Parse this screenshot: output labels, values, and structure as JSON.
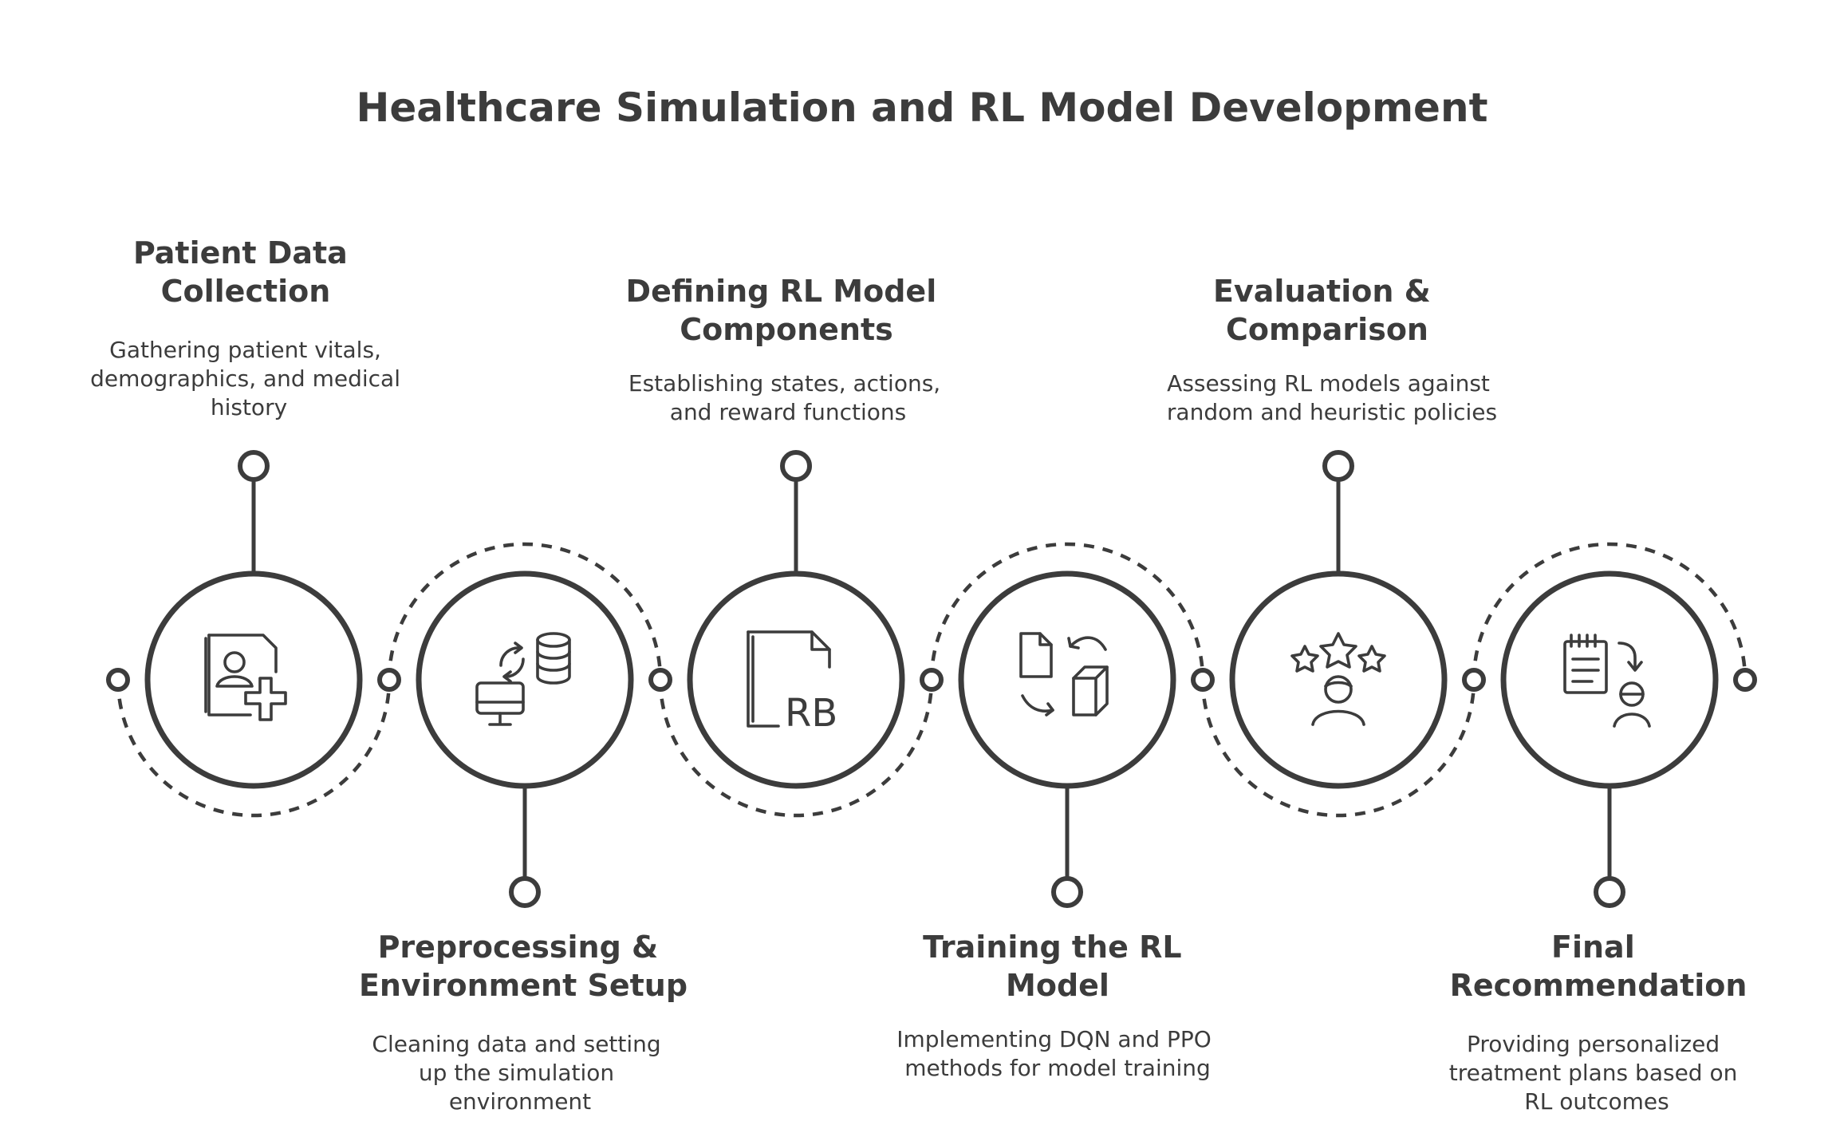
{
  "title": "Healthcare Simulation and RL Model Development",
  "steps": [
    {
      "title": [
        "Patient Data",
        "Collection"
      ],
      "description": [
        "Gathering patient vitals,",
        "demographics, and medical",
        "history"
      ],
      "icon": "patient-record-add-icon"
    },
    {
      "title": [
        "Preprocessing &",
        "Environment Setup"
      ],
      "description": [
        "Cleaning data and setting",
        "up the simulation",
        "environment"
      ],
      "icon": "database-sync-computer-icon"
    },
    {
      "title": [
        "Defining RL Model",
        "Components"
      ],
      "description": [
        "Establishing states, actions,",
        "and reward functions"
      ],
      "icon": "document-rb-icon",
      "icon_text": "RB"
    },
    {
      "title": [
        "Training the RL",
        "Model"
      ],
      "description": [
        "Implementing DQN and PPO",
        "methods for model training"
      ],
      "icon": "document-cube-cycle-icon"
    },
    {
      "title": [
        "Evaluation &",
        "Comparison"
      ],
      "description": [
        "Assessing RL models against",
        "random and heuristic policies"
      ],
      "icon": "stars-user-rating-icon"
    },
    {
      "title": [
        "Final",
        "Recommendation"
      ],
      "description": [
        "Providing personalized",
        "treatment plans based on",
        "RL outcomes"
      ],
      "icon": "clipboard-user-icon"
    }
  ],
  "colors": {
    "stroke": "#3c3c3c",
    "background": "#ffffff"
  }
}
